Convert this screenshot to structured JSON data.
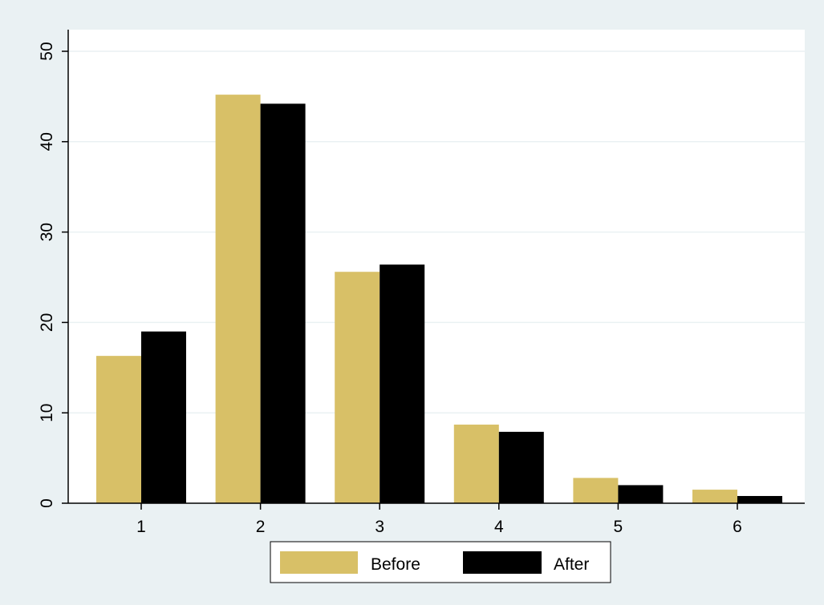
{
  "colors": {
    "outer_background": "#eaf1f3",
    "plot_background": "#ffffff",
    "gridline": "#eaf1f3",
    "axis": "#000000"
  },
  "chart_data": {
    "type": "bar",
    "categories": [
      "1",
      "2",
      "3",
      "4",
      "5",
      "6"
    ],
    "series": [
      {
        "name": "Before",
        "color": "#d8c067",
        "values": [
          16.3,
          45.2,
          25.6,
          8.7,
          2.8,
          1.5
        ]
      },
      {
        "name": "After",
        "color": "#000000",
        "values": [
          19.0,
          44.2,
          26.4,
          7.9,
          2.0,
          0.8
        ]
      }
    ],
    "yticks": [
      0,
      10,
      20,
      30,
      40,
      50
    ],
    "ylim": [
      0,
      50
    ],
    "grid": true,
    "legend_position": "bottom"
  }
}
